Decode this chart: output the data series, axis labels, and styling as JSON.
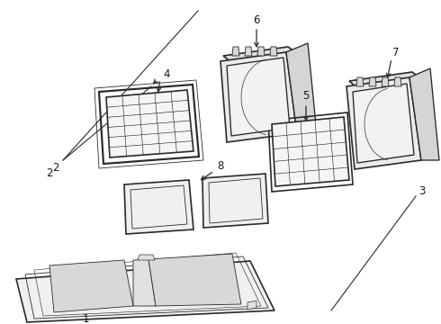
{
  "background_color": "#ffffff",
  "line_color": "#2a2a2a",
  "text_color": "#1a1a1a",
  "fig_width": 4.9,
  "fig_height": 3.6,
  "dpi": 100
}
